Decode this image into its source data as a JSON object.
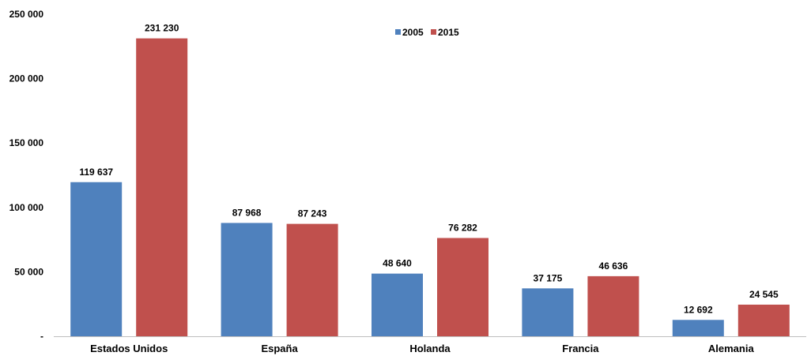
{
  "chart_data": {
    "type": "bar",
    "categories": [
      "Estados Unidos",
      "España",
      "Holanda",
      "Francia",
      "Alemania"
    ],
    "series": [
      {
        "name": "2005",
        "color": "#4F81BD",
        "values": [
          119637,
          87968,
          48640,
          37175,
          12692
        ],
        "labels": [
          "119 637",
          "87 968",
          "48 640",
          "37 175",
          "12 692"
        ]
      },
      {
        "name": "2015",
        "color": "#C0504D",
        "values": [
          231230,
          87243,
          76282,
          46636,
          24545
        ],
        "labels": [
          "231 230",
          "87 243",
          "76 282",
          "46 636",
          "24 545"
        ]
      }
    ],
    "ylim": [
      0,
      250000
    ],
    "yticks": [
      0,
      50000,
      100000,
      150000,
      200000,
      250000
    ],
    "ytick_labels": [
      "-",
      "50 000",
      "100 000",
      "150 000",
      "200 000",
      "250 000"
    ],
    "legend_position": "top-center",
    "grid": false
  }
}
